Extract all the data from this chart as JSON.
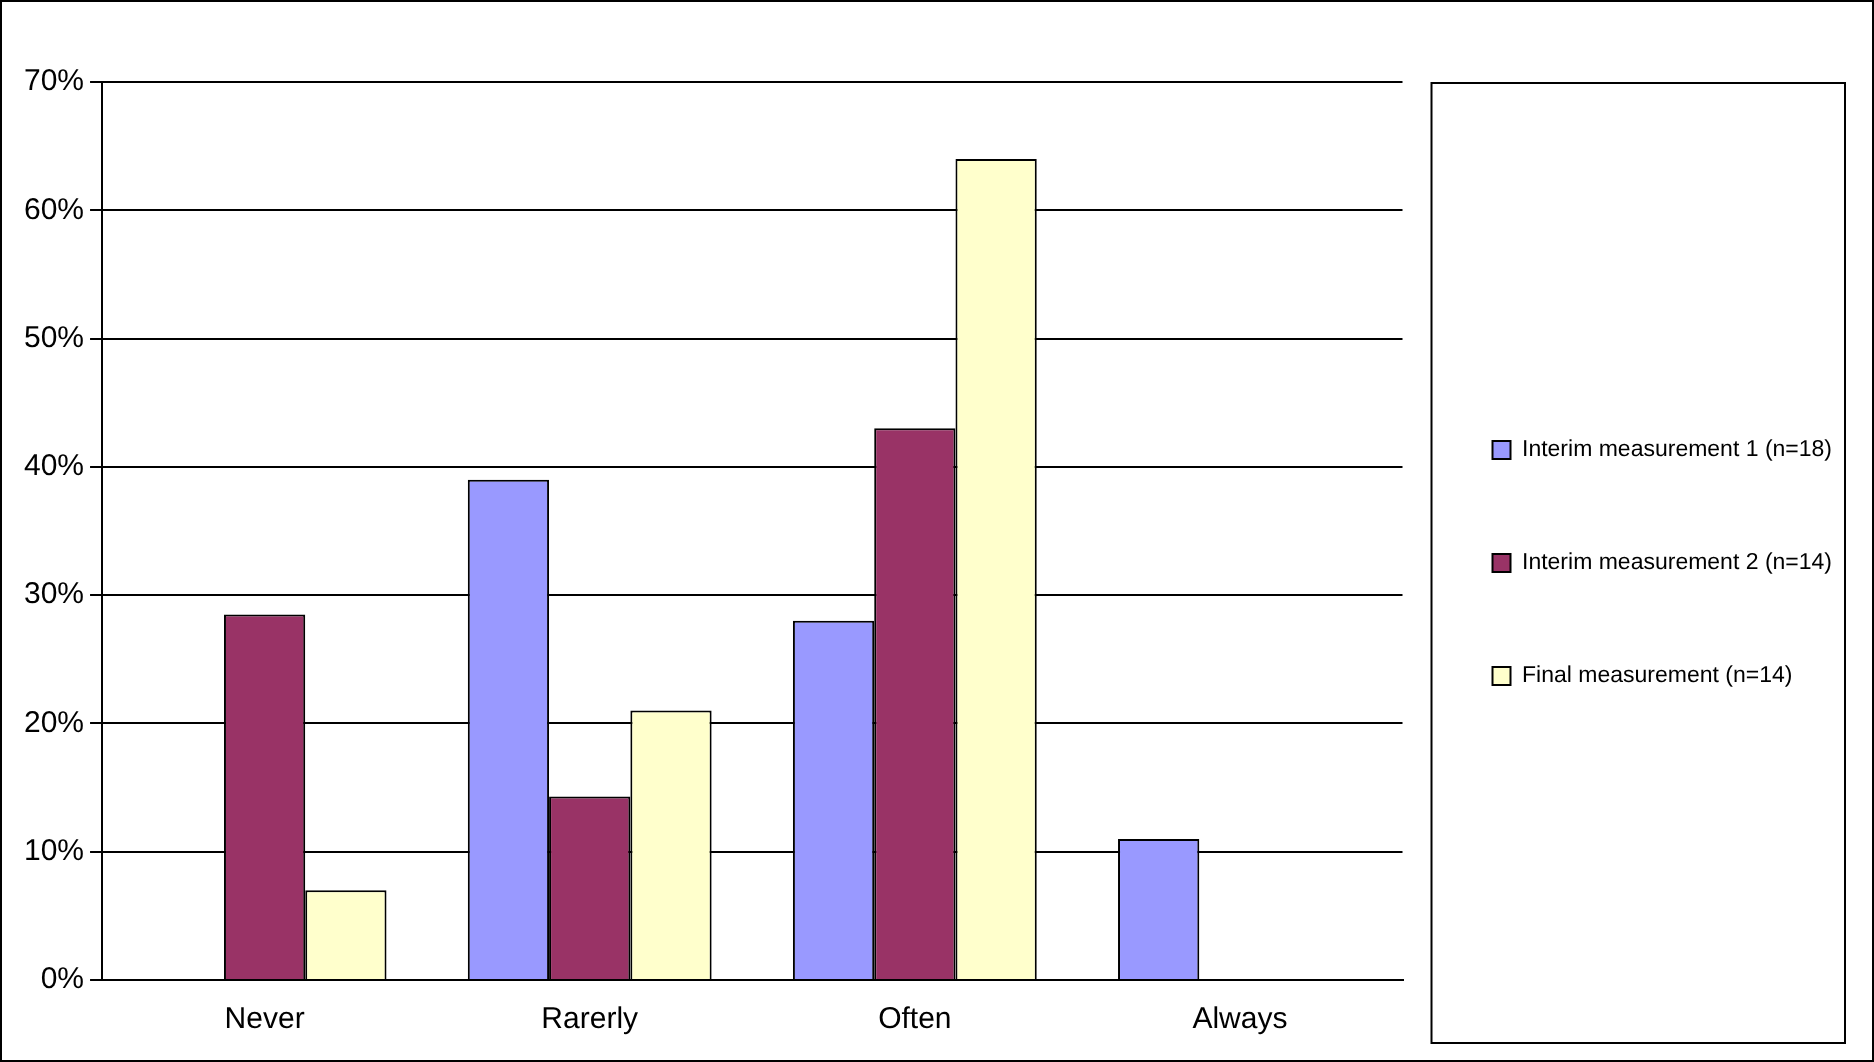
{
  "chart_data": {
    "type": "bar",
    "categories": [
      "Never",
      "Rarerly",
      "Often",
      "Always"
    ],
    "series": [
      {
        "name": "Interim measurement 1 (n=18)",
        "color": "#9999ff",
        "values": [
          0,
          39,
          28,
          11
        ]
      },
      {
        "name": "Interim measurement 2 (n=14)",
        "color": "#993366",
        "values": [
          28.5,
          14.3,
          43,
          0
        ]
      },
      {
        "name": "Final measurement (n=14)",
        "color": "#ffffcc",
        "values": [
          7,
          21,
          64,
          0
        ]
      }
    ],
    "ylim": [
      0,
      70
    ],
    "yticks": [
      {
        "value": 0,
        "label": "0%"
      },
      {
        "value": 10,
        "label": "10%"
      },
      {
        "value": 20,
        "label": "20%"
      },
      {
        "value": 30,
        "label": "30%"
      },
      {
        "value": 40,
        "label": "40%"
      },
      {
        "value": 50,
        "label": "50%"
      },
      {
        "value": 60,
        "label": "60%"
      },
      {
        "value": 70,
        "label": "70%"
      }
    ],
    "grid": "y",
    "legend": "right"
  }
}
